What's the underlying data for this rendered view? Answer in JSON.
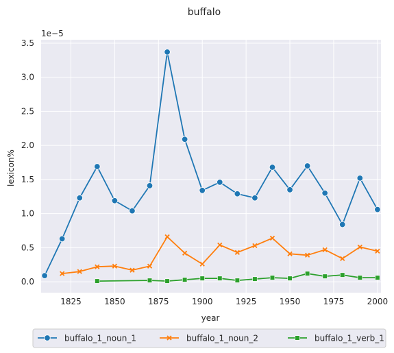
{
  "chart_data": {
    "type": "line",
    "title": "buffalo",
    "xlabel": "year",
    "ylabel": "lexicon%",
    "y_scale_label": "1e−5",
    "xlim": [
      1808,
      2002
    ],
    "ylim": [
      -0.16,
      3.55
    ],
    "x_ticks": [
      1825,
      1850,
      1875,
      1900,
      1925,
      1950,
      1975,
      2000
    ],
    "y_ticks": [
      0.0,
      0.5,
      1.0,
      1.5,
      2.0,
      2.5,
      3.0,
      3.5
    ],
    "y_tick_labels": [
      "0.0",
      "0.5",
      "1.0",
      "1.5",
      "2.0",
      "2.5",
      "3.0",
      "3.5"
    ],
    "grid": true,
    "background": "#eaeaf2",
    "legend_position": "bottom-center",
    "series": [
      {
        "name": "buffalo_1_noun_1",
        "color": "#1f77b4",
        "marker": "circle",
        "x": [
          1810,
          1820,
          1830,
          1840,
          1850,
          1860,
          1870,
          1880,
          1890,
          1900,
          1910,
          1920,
          1930,
          1940,
          1950,
          1960,
          1970,
          1980,
          1990,
          2000
        ],
        "y": [
          0.09,
          0.63,
          1.23,
          1.69,
          1.19,
          1.04,
          1.41,
          3.37,
          2.09,
          1.34,
          1.46,
          1.29,
          1.23,
          1.68,
          1.35,
          1.7,
          1.3,
          0.84,
          1.52,
          1.06
        ]
      },
      {
        "name": "buffalo_1_noun_2",
        "color": "#ff7f0e",
        "marker": "x",
        "x": [
          1820,
          1830,
          1840,
          1850,
          1860,
          1870,
          1880,
          1890,
          1900,
          1910,
          1920,
          1930,
          1940,
          1950,
          1960,
          1970,
          1980,
          1990,
          2000
        ],
        "y": [
          0.12,
          0.15,
          0.22,
          0.23,
          0.17,
          0.23,
          0.66,
          0.42,
          0.26,
          0.54,
          0.43,
          0.53,
          0.64,
          0.41,
          0.39,
          0.47,
          0.34,
          0.51,
          0.45
        ]
      },
      {
        "name": "buffalo_1_verb_1",
        "color": "#2ca02c",
        "marker": "square",
        "x": [
          1840,
          1870,
          1880,
          1890,
          1900,
          1910,
          1920,
          1930,
          1940,
          1950,
          1960,
          1970,
          1980,
          1990,
          2000
        ],
        "y": [
          0.01,
          0.02,
          0.01,
          0.03,
          0.05,
          0.05,
          0.02,
          0.04,
          0.06,
          0.05,
          0.12,
          0.08,
          0.1,
          0.06,
          0.06
        ]
      }
    ]
  }
}
